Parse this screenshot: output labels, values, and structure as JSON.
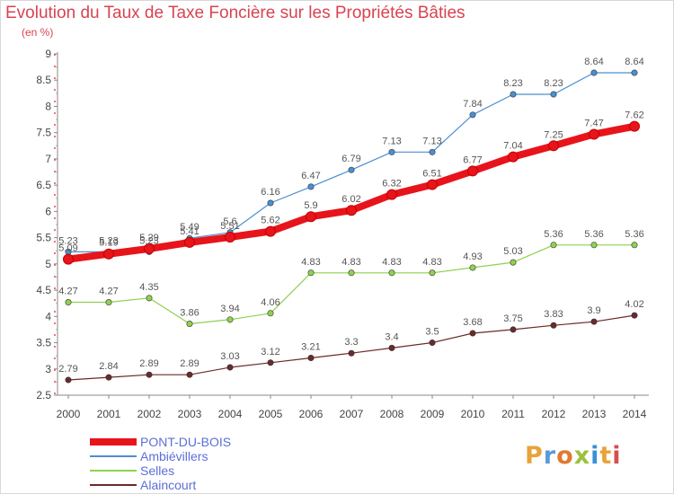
{
  "header": {
    "title": "Evolution du Taux de Taxe Foncière sur les Propriétés Bâties",
    "subtitle": "(en %)"
  },
  "logo": {
    "text": "Proxiti",
    "colors": [
      "#e8a33b",
      "#5a9ad8",
      "#e07a30",
      "#9bc23a",
      "#3b8fd6",
      "#e8a33b",
      "#d64f4f"
    ]
  },
  "chart_data": {
    "type": "line",
    "title": "Evolution du Taux de Taxe Foncière sur les Propriétés Bâties",
    "ylabel": "(en %)",
    "x": [
      "2000",
      "2001",
      "2002",
      "2003",
      "2004",
      "2005",
      "2006",
      "2007",
      "2008",
      "2009",
      "2010",
      "2011",
      "2012",
      "2013",
      "2014"
    ],
    "ylim": [
      2.5,
      9
    ],
    "yticks": [
      "2.5",
      "3",
      "3.5",
      "4",
      "4.5",
      "5",
      "5.5",
      "6",
      "6.5",
      "7",
      "7.5",
      "8",
      "8.5",
      "9"
    ],
    "grid": false,
    "legend_position": "bottom-left",
    "series": [
      {
        "name": "PONT-DU-BOIS",
        "color": "#e8141b",
        "line_width": 8,
        "values": [
          5.09,
          5.19,
          5.29,
          5.41,
          5.51,
          5.62,
          5.9,
          6.02,
          6.32,
          6.51,
          6.77,
          7.04,
          7.25,
          7.47,
          7.62
        ],
        "labels": [
          "5.09",
          "5.19",
          "5.29",
          "5.41",
          "5.51",
          "5.62",
          "5.9",
          "6.02",
          "6.32",
          "6.51",
          "6.77",
          "7.04",
          "7.25",
          "7.47",
          "7.62"
        ]
      },
      {
        "name": "Ambiévillers",
        "color": "#4a8fd0",
        "line_width": 1.2,
        "values": [
          5.23,
          5.23,
          5.23,
          5.49,
          5.6,
          6.16,
          6.47,
          6.79,
          7.13,
          7.13,
          7.84,
          8.23,
          8.23,
          8.64,
          8.64
        ],
        "labels": [
          "5.23",
          "5.23",
          "5.23",
          "5.49",
          "5.6",
          "6.16",
          "6.47",
          "6.79",
          "7.13",
          "7.13",
          "7.84",
          "8.23",
          "8.23",
          "8.64",
          "8.64"
        ]
      },
      {
        "name": "Selles",
        "color": "#8fd14f",
        "line_width": 1.2,
        "values": [
          4.27,
          4.27,
          4.35,
          3.86,
          3.94,
          4.06,
          4.83,
          4.83,
          4.83,
          4.83,
          4.93,
          5.03,
          5.36,
          5.36,
          5.36
        ],
        "labels": [
          "4.27",
          "4.27",
          "4.35",
          "3.86",
          "3.94",
          "4.06",
          "4.83",
          "4.83",
          "4.83",
          "4.83",
          "4.93",
          "5.03",
          "5.36",
          "5.36",
          "5.36"
        ]
      },
      {
        "name": "Alaincourt",
        "color": "#6b2a2a",
        "line_width": 1.2,
        "values": [
          2.79,
          2.84,
          2.89,
          2.89,
          3.03,
          3.12,
          3.21,
          3.3,
          3.4,
          3.5,
          3.68,
          3.75,
          3.83,
          3.9,
          4.02
        ],
        "labels": [
          "2.79",
          "2.84",
          "2.89",
          "2.89",
          "3.03",
          "3.12",
          "3.21",
          "3.3",
          "3.4",
          "3.5",
          "3.68",
          "3.75",
          "3.83",
          "3.9",
          "4.02"
        ]
      }
    ]
  }
}
